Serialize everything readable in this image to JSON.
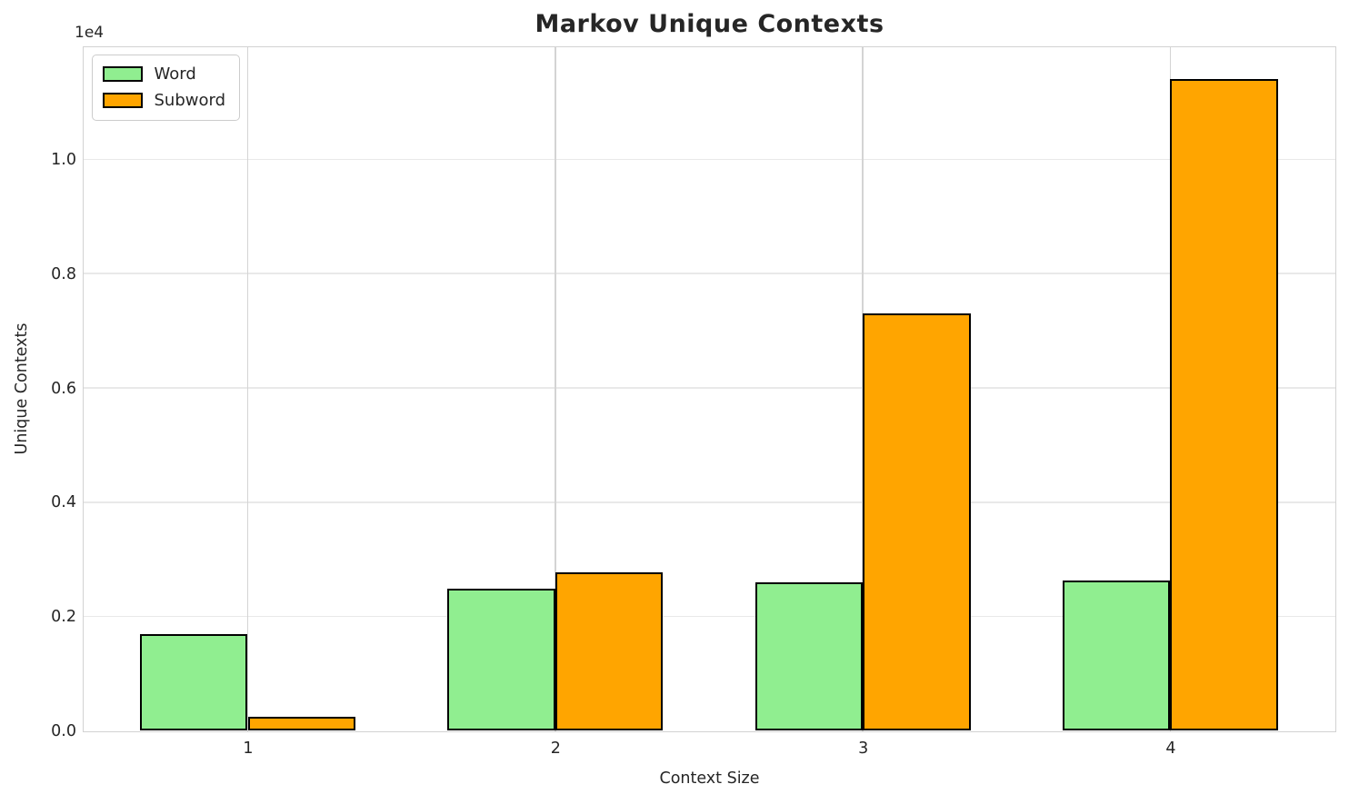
{
  "chart_data": {
    "type": "bar",
    "title": "Markov Unique Contexts",
    "xlabel": "Context Size",
    "ylabel": "Unique Contexts",
    "categories": [
      "1",
      "2",
      "3",
      "4"
    ],
    "series": [
      {
        "name": "Word",
        "color": "#90ee90",
        "values": [
          1700,
          2480,
          2600,
          2630
        ]
      },
      {
        "name": "Subword",
        "color": "#ffa500",
        "values": [
          250,
          2780,
          7300,
          11400
        ]
      }
    ],
    "edge_color": "#000000",
    "bar_width_units": 0.35,
    "xlim": [
      0.465,
      4.535
    ],
    "ylim": [
      0,
      11970
    ],
    "yticks": {
      "values": [
        0,
        2000,
        4000,
        6000,
        8000,
        10000
      ],
      "labels": [
        "0.0",
        "0.2",
        "0.4",
        "0.6",
        "0.8",
        "1.0"
      ]
    },
    "offset_text": "1e4",
    "grid": true,
    "legend_position": "upper-left"
  }
}
